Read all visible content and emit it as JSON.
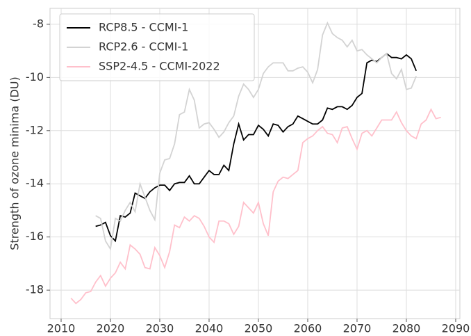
{
  "chart_data": {
    "type": "line",
    "ylabel": "Strength of ozone minima (DU)",
    "x": [
      2012,
      2013,
      2014,
      2015,
      2016,
      2017,
      2018,
      2019,
      2020,
      2021,
      2022,
      2023,
      2024,
      2025,
      2026,
      2027,
      2028,
      2029,
      2030,
      2031,
      2032,
      2033,
      2034,
      2035,
      2036,
      2037,
      2038,
      2039,
      2040,
      2041,
      2042,
      2043,
      2044,
      2045,
      2046,
      2047,
      2048,
      2049,
      2050,
      2051,
      2052,
      2053,
      2054,
      2055,
      2056,
      2057,
      2058,
      2059,
      2060,
      2061,
      2062,
      2063,
      2064,
      2065,
      2066,
      2067,
      2068,
      2069,
      2070,
      2071,
      2072,
      2073,
      2074,
      2075,
      2076,
      2077,
      2078,
      2079,
      2080,
      2081,
      2082,
      2083,
      2084,
      2085,
      2086,
      2087
    ],
    "series": [
      {
        "name": "RCP8.5 - CCMI-1",
        "color": "#000000",
        "values": [
          null,
          null,
          null,
          null,
          null,
          -15.6,
          -15.55,
          -15.45,
          -15.95,
          -16.15,
          -15.2,
          -15.25,
          -15.1,
          -14.35,
          -14.45,
          -14.55,
          -14.3,
          -14.15,
          -14.05,
          -14.05,
          -14.25,
          -14.0,
          -13.95,
          -13.95,
          -13.7,
          -14.0,
          -14.0,
          -13.75,
          -13.5,
          -13.65,
          -13.65,
          -13.3,
          -13.5,
          -12.5,
          -11.75,
          -12.35,
          -12.15,
          -12.15,
          -11.8,
          -11.95,
          -12.2,
          -11.75,
          -11.8,
          -12.05,
          -11.85,
          -11.75,
          -11.45,
          -11.55,
          -11.65,
          -11.75,
          -11.75,
          -11.6,
          -11.15,
          -11.2,
          -11.1,
          -11.1,
          -11.2,
          -11.05,
          -10.75,
          -10.6,
          -9.45,
          -9.35,
          -9.4,
          -9.25,
          -9.1,
          -9.25,
          -9.25,
          -9.3,
          -9.15,
          -9.3,
          -9.75,
          null,
          null,
          null,
          null,
          null
        ]
      },
      {
        "name": "RCP2.6 - CCMI-1",
        "color": "#d3d3d3",
        "values": [
          null,
          null,
          null,
          null,
          null,
          -15.2,
          -15.3,
          -16.15,
          -16.45,
          -15.3,
          -15.4,
          -15.0,
          -14.7,
          -15.05,
          -14.0,
          -14.5,
          -15.0,
          -15.35,
          -13.6,
          -13.1,
          -13.05,
          -12.5,
          -11.4,
          -11.3,
          -10.45,
          -10.85,
          -11.9,
          -11.75,
          -11.7,
          -11.95,
          -12.25,
          -12.05,
          -11.7,
          -11.45,
          -10.7,
          -10.25,
          -10.45,
          -10.75,
          -10.45,
          -9.85,
          -9.6,
          -9.45,
          -9.45,
          -9.45,
          -9.75,
          -9.75,
          -9.65,
          -9.6,
          -9.8,
          -10.2,
          -9.7,
          -8.4,
          -7.95,
          -8.35,
          -8.5,
          -8.6,
          -8.85,
          -8.6,
          -9.0,
          -8.95,
          -9.15,
          -9.3,
          -9.45,
          -9.25,
          -9.1,
          -9.85,
          -10.05,
          -9.7,
          -10.45,
          -10.4,
          -9.95,
          null,
          null,
          null,
          null,
          null
        ]
      },
      {
        "name": "SSP2-4.5 - CCMI-2022",
        "color": "#ffc0cb",
        "values": [
          -18.3,
          -18.5,
          -18.35,
          -18.1,
          -18.05,
          -17.7,
          -17.45,
          -17.85,
          -17.55,
          -17.35,
          -16.95,
          -17.2,
          -16.3,
          -16.45,
          -16.65,
          -17.15,
          -17.2,
          -16.4,
          -16.7,
          -17.15,
          -16.55,
          -15.55,
          -15.65,
          -15.25,
          -15.4,
          -15.2,
          -15.3,
          -15.6,
          -16.0,
          -16.2,
          -15.4,
          -15.4,
          -15.5,
          -15.9,
          -15.6,
          -14.7,
          -14.9,
          -15.1,
          -14.7,
          -15.5,
          -15.95,
          -14.3,
          -13.9,
          -13.75,
          -13.8,
          -13.65,
          -13.5,
          -12.45,
          -12.3,
          -12.2,
          -12.0,
          -11.85,
          -12.1,
          -12.15,
          -12.45,
          -11.9,
          -11.85,
          -12.3,
          -12.7,
          -12.1,
          -12.0,
          -12.2,
          -11.9,
          -11.6,
          -11.6,
          -11.6,
          -11.3,
          -11.7,
          -12.0,
          -12.2,
          -12.3,
          -11.75,
          -11.6,
          -11.2,
          -11.55,
          -11.5
        ]
      }
    ],
    "xlim": [
      2007.75,
      2090.85
    ],
    "ylim": [
      -19.07,
      -7.4
    ],
    "xticks": [
      2010,
      2020,
      2030,
      2040,
      2050,
      2060,
      2070,
      2080,
      2090
    ],
    "yticks": [
      -18,
      -16,
      -14,
      -12,
      -10,
      -8
    ],
    "grid": true,
    "legend": "upper left"
  }
}
